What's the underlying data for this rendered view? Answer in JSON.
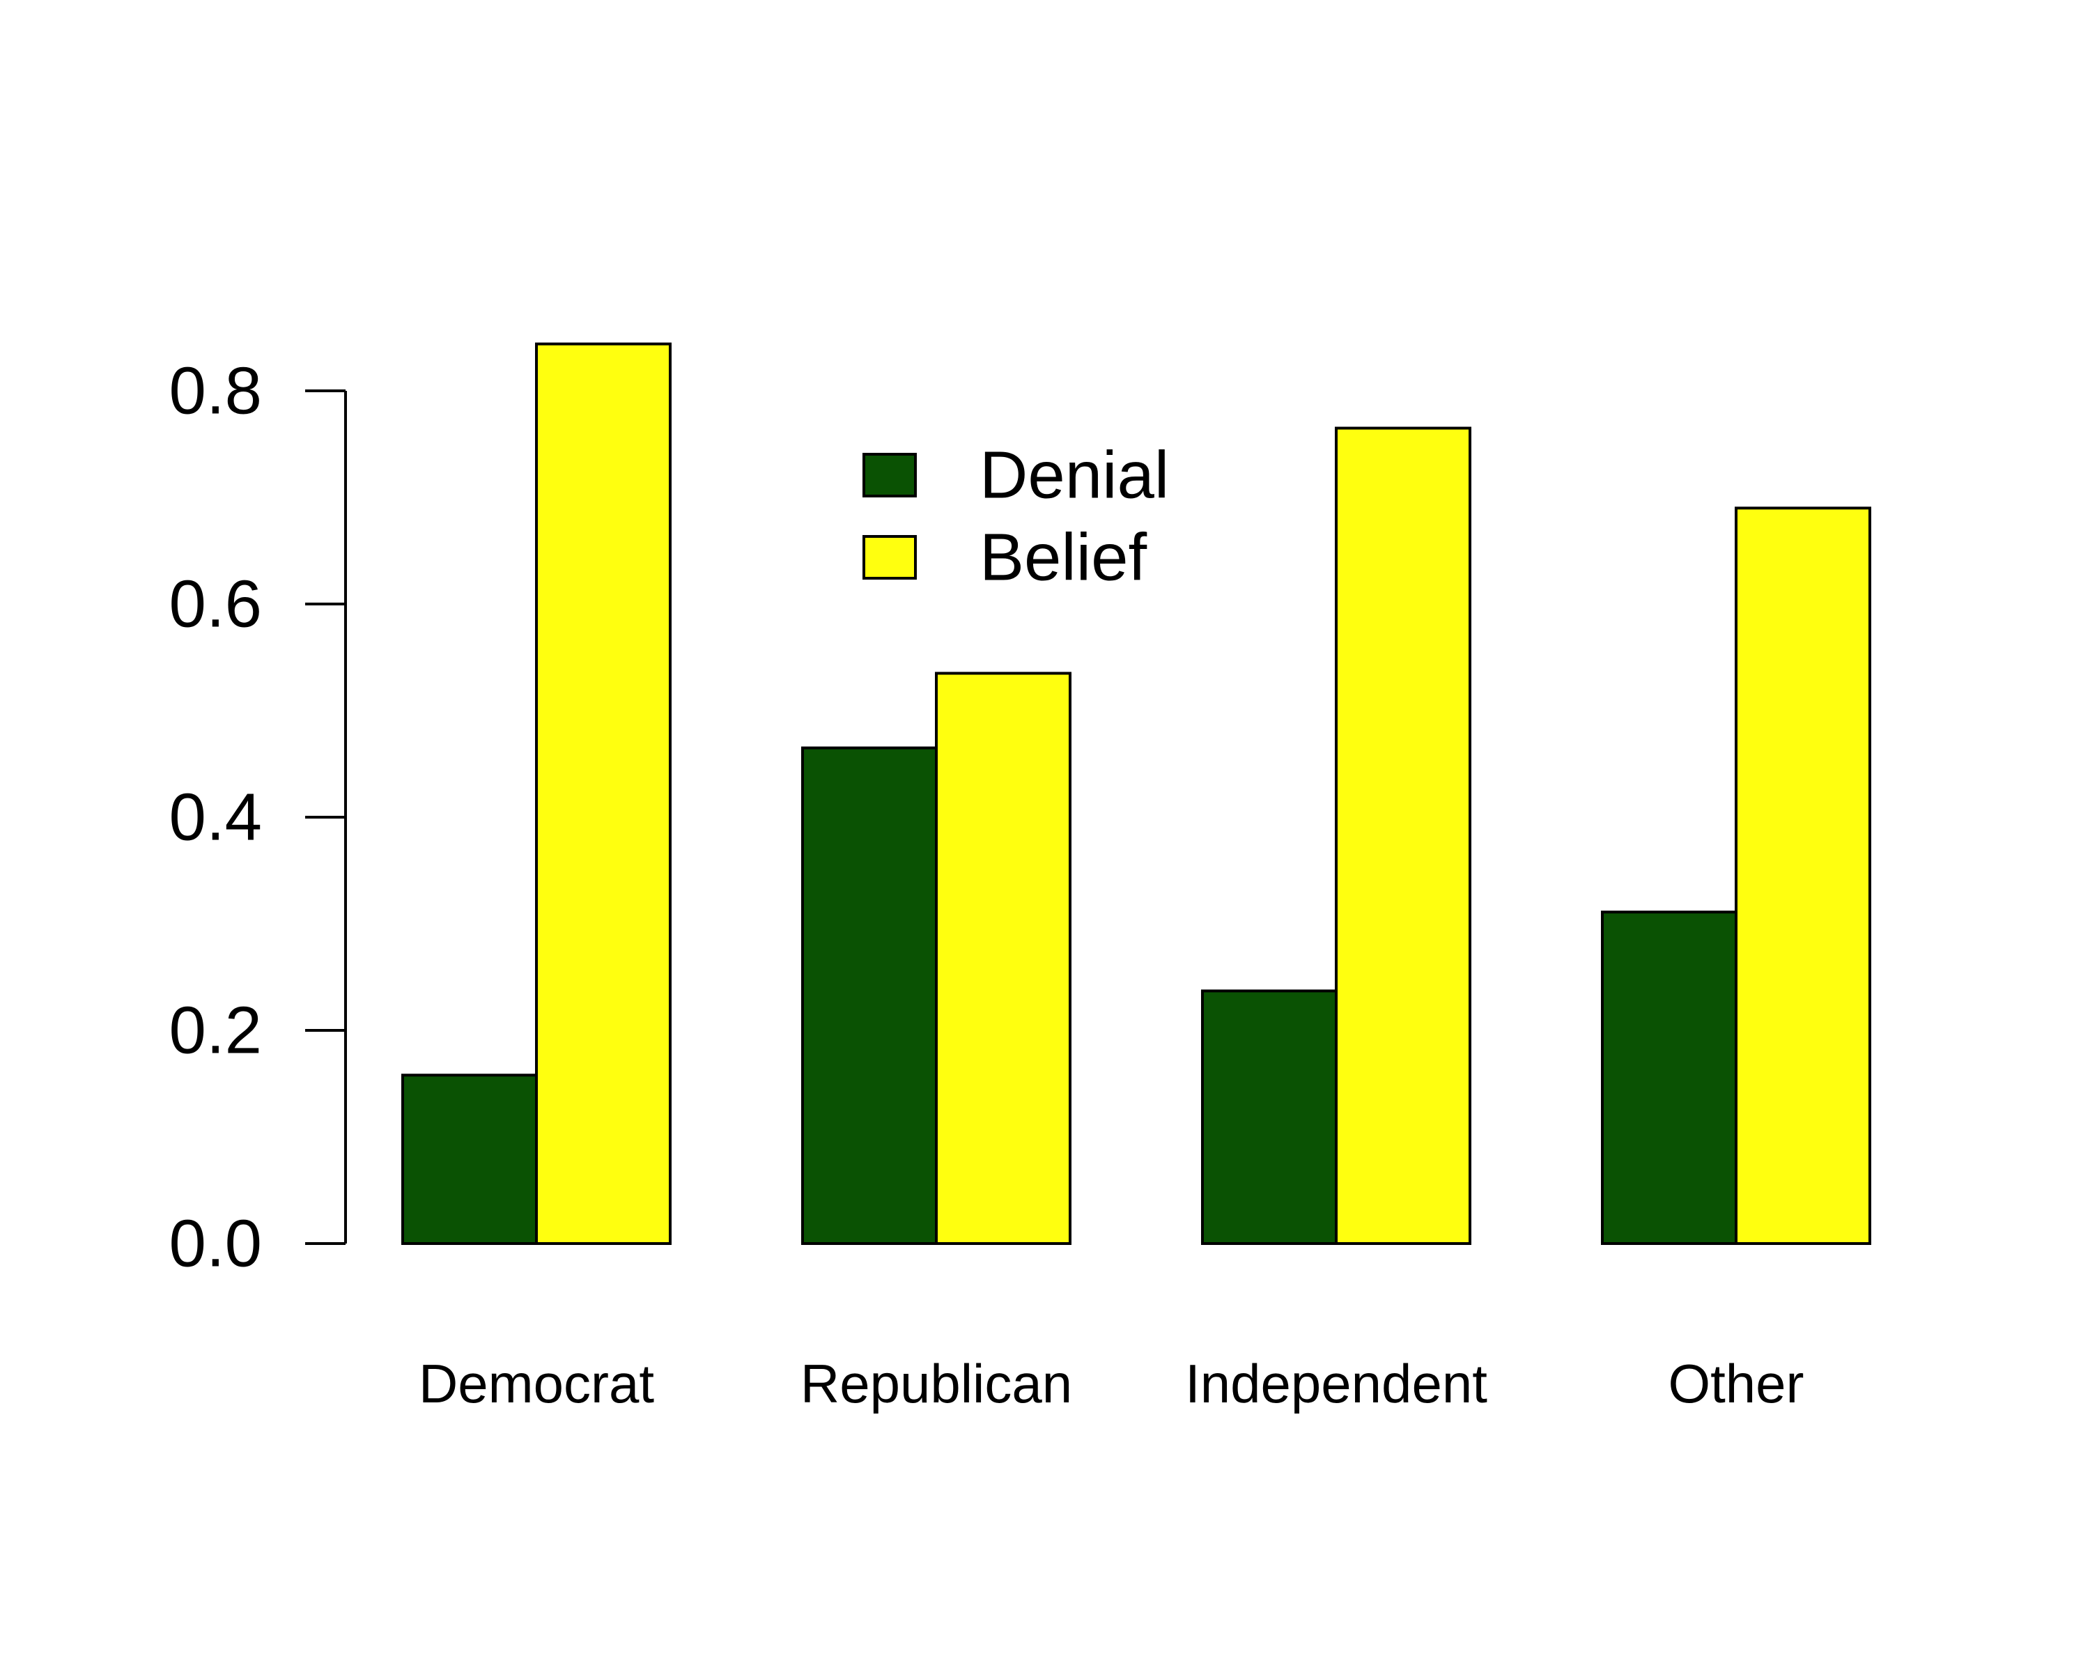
{
  "chart_data": {
    "type": "bar",
    "title": "",
    "xlabel": "",
    "ylabel": "",
    "categories": [
      "Democrat",
      "Republican",
      "Independent",
      "Other"
    ],
    "series": [
      {
        "name": "Denial",
        "color": "#0a5203",
        "values": [
          0.158,
          0.465,
          0.237,
          0.311
        ]
      },
      {
        "name": "Belief",
        "color": "#ffff0f",
        "values": [
          0.844,
          0.535,
          0.765,
          0.69
        ]
      }
    ],
    "ylim": [
      0,
      0.8
    ],
    "yticks": [
      "0.0",
      "0.2",
      "0.4",
      "0.6",
      "0.8"
    ],
    "grid": false,
    "legend_position": "top-center"
  }
}
